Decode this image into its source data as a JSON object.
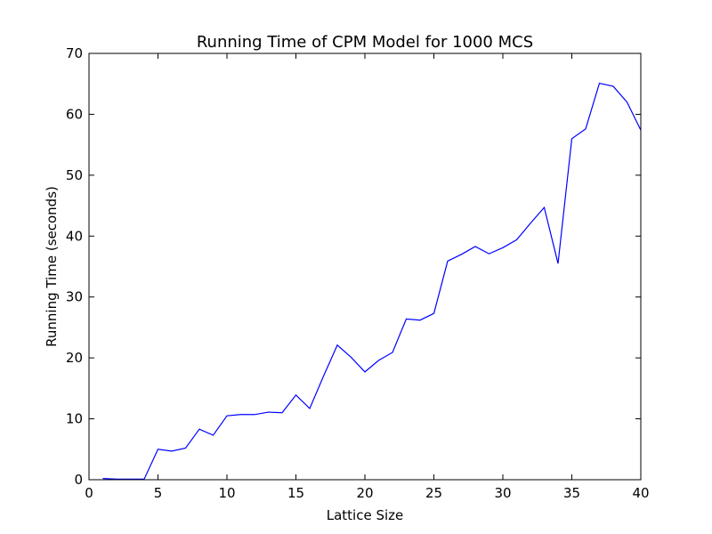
{
  "chart_data": {
    "type": "line",
    "title": "Running Time of CPM Model for 1000 MCS",
    "xlabel": "Lattice Size",
    "ylabel": "Running Time (seconds)",
    "xlim": [
      0,
      40
    ],
    "ylim": [
      0,
      70
    ],
    "xticks": [
      "0",
      "5",
      "10",
      "15",
      "20",
      "25",
      "30",
      "35",
      "40"
    ],
    "yticks": [
      "0",
      "10",
      "20",
      "30",
      "40",
      "50",
      "60",
      "70"
    ],
    "grid": false,
    "legend": "none",
    "series": [
      {
        "color": "#0000ff",
        "x": [
          1,
          2,
          3,
          4,
          5,
          6,
          7,
          8,
          9,
          10,
          11,
          12,
          13,
          14,
          15,
          16,
          17,
          18,
          19,
          20,
          21,
          22,
          23,
          24,
          25,
          26,
          27,
          28,
          29,
          30,
          31,
          32,
          33,
          34,
          35,
          36,
          37,
          38,
          39,
          40
        ],
        "y": [
          0.2,
          0.1,
          0.1,
          0.1,
          5.0,
          4.7,
          5.2,
          8.3,
          7.3,
          10.5,
          10.7,
          10.7,
          11.1,
          11.0,
          13.9,
          11.7,
          17.0,
          22.1,
          20.1,
          17.7,
          19.6,
          20.9,
          26.4,
          26.2,
          27.3,
          35.9,
          37.0,
          38.3,
          37.1,
          38.1,
          39.4,
          42.1,
          44.7,
          35.5,
          56.0,
          57.6,
          65.1,
          64.6,
          62.0,
          57.4
        ]
      }
    ]
  }
}
